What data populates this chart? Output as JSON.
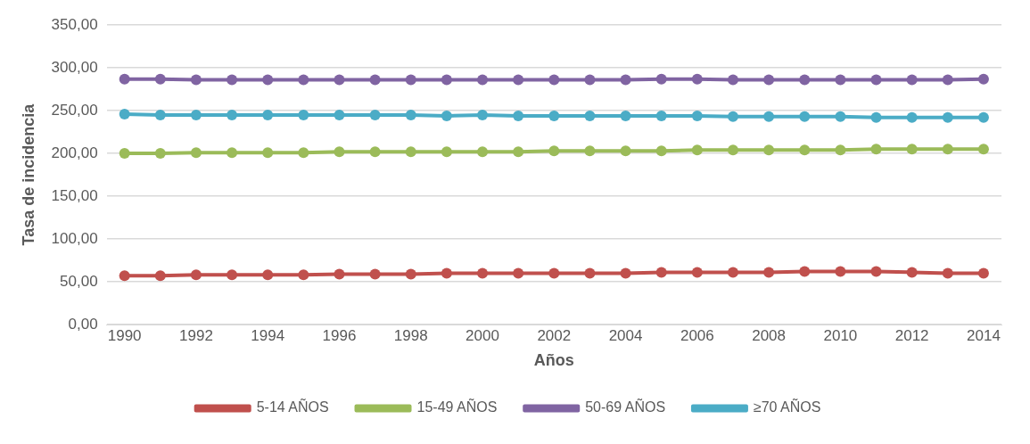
{
  "chart_data": {
    "type": "line",
    "xlabel": "Años",
    "ylabel": "Tasa de incidencia",
    "categories": [
      "1990",
      null,
      "1992",
      null,
      "1994",
      null,
      "1996",
      null,
      "1998",
      null,
      "2000",
      null,
      "2002",
      null,
      "2004",
      null,
      "2006",
      null,
      "2008",
      null,
      "2010",
      null,
      "2012",
      null,
      "2014"
    ],
    "series": [
      {
        "name": "5-14 AÑOS",
        "color": "#c0504d",
        "values": [
          57,
          57,
          58,
          58,
          58,
          58,
          59,
          59,
          59,
          60,
          60,
          60,
          60,
          60,
          60,
          61,
          61,
          61,
          61,
          62,
          62,
          62,
          61,
          60,
          60
        ]
      },
      {
        "name": "15-49 AÑOS",
        "color": "#9bbb59",
        "values": [
          200,
          200,
          201,
          201,
          201,
          201,
          202,
          202,
          202,
          202,
          202,
          202,
          203,
          203,
          203,
          203,
          204,
          204,
          204,
          204,
          204,
          205,
          205,
          205,
          205
        ]
      },
      {
        "name": "50-69 AÑOS",
        "color": "#8064a2",
        "values": [
          287,
          287,
          286,
          286,
          286,
          286,
          286,
          286,
          286,
          286,
          286,
          286,
          286,
          286,
          286,
          287,
          287,
          286,
          286,
          286,
          286,
          286,
          286,
          286,
          287
        ]
      },
      {
        "name": "≥70 AÑOS",
        "color": "#4bacc6",
        "values": [
          246,
          245,
          245,
          245,
          245,
          245,
          245,
          245,
          245,
          244,
          245,
          244,
          244,
          244,
          244,
          244,
          244,
          243,
          243,
          243,
          243,
          242,
          242,
          242,
          242
        ]
      }
    ],
    "ylim": [
      0,
      350
    ],
    "yticks": [
      {
        "value": 0,
        "label": "0,00"
      },
      {
        "value": 50,
        "label": "50,00"
      },
      {
        "value": 100,
        "label": "100,00"
      },
      {
        "value": 150,
        "label": "150,00"
      },
      {
        "value": 200,
        "label": "200,00"
      },
      {
        "value": 250,
        "label": "250,00"
      },
      {
        "value": 300,
        "label": "300,00"
      },
      {
        "value": 350,
        "label": "350,00"
      }
    ],
    "grid": "y",
    "legend": "bottom",
    "marker": "circle",
    "line_style": "solid"
  }
}
